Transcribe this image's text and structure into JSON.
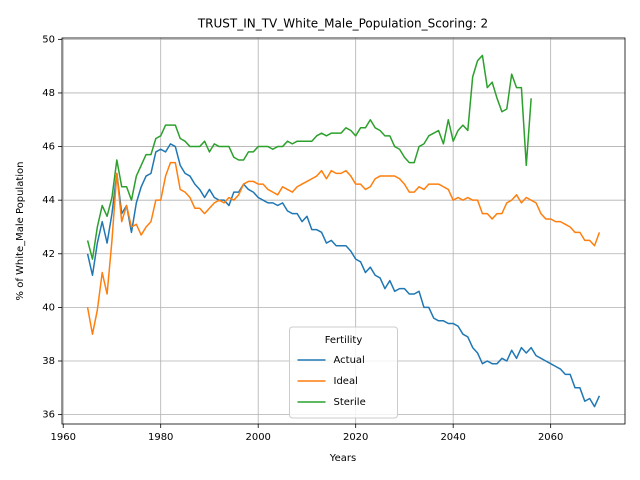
{
  "chart_data": {
    "type": "line",
    "title": "TRUST_IN_TV_White_Male_Population_Scoring: 2",
    "x_label": "Years",
    "y_label": "% of White_Male Population",
    "legend_title": "Fertility",
    "legend": "lower center",
    "grid": true,
    "xlim": [
      1959.75,
      2075.25
    ],
    "ylim": [
      35.65,
      50.05
    ],
    "xticks": [
      1960,
      1980,
      2000,
      2020,
      2040,
      2060
    ],
    "yticks": [
      36,
      38,
      40,
      42,
      44,
      46,
      48,
      50
    ],
    "x": [
      1965,
      1966,
      1967,
      1968,
      1969,
      1970,
      1971,
      1972,
      1973,
      1974,
      1975,
      1976,
      1977,
      1978,
      1979,
      1980,
      1981,
      1982,
      1983,
      1984,
      1985,
      1986,
      1987,
      1988,
      1989,
      1990,
      1991,
      1992,
      1993,
      1994,
      1995,
      1996,
      1997,
      1998,
      1999,
      2000,
      2001,
      2002,
      2003,
      2004,
      2005,
      2006,
      2007,
      2008,
      2009,
      2010,
      2011,
      2012,
      2013,
      2014,
      2015,
      2016,
      2017,
      2018,
      2019,
      2020,
      2021,
      2022,
      2023,
      2024,
      2025,
      2026,
      2027,
      2028,
      2029,
      2030,
      2031,
      2032,
      2033,
      2034,
      2035,
      2036,
      2037,
      2038,
      2039,
      2040,
      2041,
      2042,
      2043,
      2044,
      2045,
      2046,
      2047,
      2048,
      2049,
      2050,
      2051,
      2052,
      2053,
      2054,
      2055,
      2056,
      2057,
      2058,
      2059,
      2060,
      2061,
      2062,
      2063,
      2064,
      2065,
      2066,
      2067,
      2068,
      2069,
      2070
    ],
    "series": [
      {
        "name": "Actual",
        "color": "#1f77b4",
        "values": [
          42.0,
          41.2,
          42.4,
          43.2,
          42.4,
          43.5,
          45.0,
          43.5,
          43.8,
          42.8,
          43.9,
          44.5,
          44.9,
          45.0,
          45.8,
          45.9,
          45.8,
          46.1,
          46.0,
          45.3,
          45.0,
          44.9,
          44.6,
          44.4,
          44.1,
          44.4,
          44.1,
          44.0,
          44.0,
          43.8,
          44.3,
          44.3,
          44.6,
          44.4,
          44.3,
          44.1,
          44.0,
          43.9,
          43.9,
          43.8,
          43.9,
          43.6,
          43.5,
          43.5,
          43.2,
          43.4,
          42.9,
          42.9,
          42.8,
          42.4,
          42.5,
          42.3,
          42.3,
          42.3,
          42.1,
          41.8,
          41.7,
          41.3,
          41.5,
          41.2,
          41.1,
          40.7,
          41.0,
          40.6,
          40.7,
          40.7,
          40.5,
          40.5,
          40.6,
          40.0,
          40.0,
          39.6,
          39.5,
          39.5,
          39.4,
          39.4,
          39.3,
          39.0,
          38.9,
          38.5,
          38.3,
          37.9,
          38.0,
          37.9,
          37.9,
          38.1,
          38.0,
          38.4,
          38.1,
          38.5,
          38.3,
          38.5,
          38.2,
          38.1,
          38.0,
          37.9,
          37.8,
          37.7,
          37.5,
          37.5,
          37.0,
          37.0,
          36.5,
          36.6,
          36.3,
          36.7
        ]
      },
      {
        "name": "Ideal",
        "color": "#ff7f0e",
        "values": [
          40.0,
          39.0,
          39.9,
          41.3,
          40.5,
          42.5,
          45.0,
          43.2,
          43.8,
          43.0,
          43.1,
          42.7,
          43.0,
          43.2,
          44.0,
          44.0,
          44.9,
          45.4,
          45.4,
          44.4,
          44.3,
          44.1,
          43.7,
          43.7,
          43.5,
          43.7,
          43.9,
          44.0,
          43.9,
          44.1,
          44.0,
          44.2,
          44.6,
          44.7,
          44.7,
          44.6,
          44.6,
          44.4,
          44.3,
          44.2,
          44.5,
          44.4,
          44.3,
          44.5,
          44.6,
          44.7,
          44.8,
          44.9,
          45.1,
          44.8,
          45.1,
          45.0,
          45.0,
          45.1,
          44.9,
          44.6,
          44.6,
          44.4,
          44.5,
          44.8,
          44.9,
          44.9,
          44.9,
          44.9,
          44.8,
          44.6,
          44.3,
          44.3,
          44.5,
          44.4,
          44.6,
          44.6,
          44.6,
          44.5,
          44.4,
          44.0,
          44.1,
          44.0,
          44.1,
          44.0,
          44.0,
          43.5,
          43.5,
          43.3,
          43.5,
          43.5,
          43.9,
          44.0,
          44.2,
          43.9,
          44.1,
          44.0,
          43.9,
          43.5,
          43.3,
          43.3,
          43.2,
          43.2,
          43.1,
          43.0,
          42.8,
          42.8,
          42.5,
          42.5,
          42.3,
          42.8
        ]
      },
      {
        "name": "Sterile",
        "color": "#2ca02c",
        "values": [
          42.5,
          41.8,
          43.0,
          43.8,
          43.4,
          44.1,
          45.5,
          44.5,
          44.5,
          44.0,
          44.9,
          45.3,
          45.7,
          45.7,
          46.3,
          46.4,
          46.8,
          46.8,
          46.8,
          46.3,
          46.2,
          46.0,
          46.0,
          46.0,
          46.2,
          45.8,
          46.1,
          46.0,
          46.0,
          46.0,
          45.6,
          45.5,
          45.5,
          45.8,
          45.8,
          46.0,
          46.0,
          46.0,
          45.9,
          46.0,
          46.0,
          46.2,
          46.1,
          46.2,
          46.2,
          46.2,
          46.2,
          46.4,
          46.5,
          46.4,
          46.5,
          46.5,
          46.5,
          46.7,
          46.6,
          46.4,
          46.7,
          46.7,
          47.0,
          46.7,
          46.6,
          46.4,
          46.4,
          46.0,
          45.9,
          45.6,
          45.4,
          45.4,
          46.0,
          46.1,
          46.4,
          46.5,
          46.6,
          46.1,
          47.0,
          46.2,
          46.6,
          46.8,
          46.6,
          48.6,
          49.2,
          49.4,
          48.2,
          48.4,
          47.8,
          47.3,
          47.4,
          48.7,
          48.2,
          48.2,
          45.3,
          47.8,
          null,
          null,
          null,
          null,
          null,
          null,
          null,
          null,
          null,
          null,
          null,
          null,
          null,
          null
        ]
      }
    ]
  }
}
